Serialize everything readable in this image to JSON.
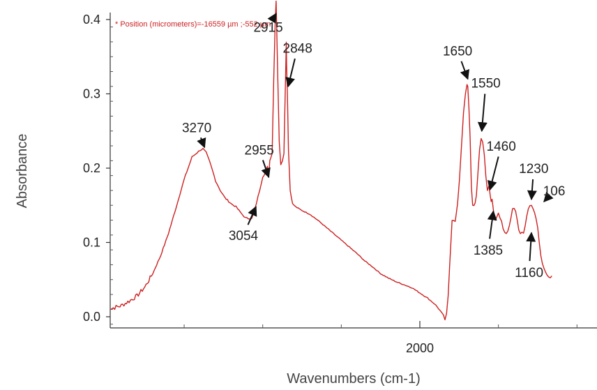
{
  "chart_data": {
    "type": "line",
    "title": "",
    "position_text": "* Position (micrometers)=-16559 µm ;-552 µm",
    "xlabel": "Wavenumbers (cm-1)",
    "ylabel": "Absorbance",
    "xlim": [
      4000,
      1000
    ],
    "ylim": [
      -0.02,
      0.43
    ],
    "x_reversed": true,
    "grid": false,
    "x_ticks": [
      {
        "value": 2000,
        "label": "2000"
      }
    ],
    "y_ticks": [
      {
        "value": 0.0,
        "label": "0.0"
      },
      {
        "value": 0.1,
        "label": "0.1"
      },
      {
        "value": 0.2,
        "label": "0.2"
      },
      {
        "value": 0.3,
        "label": "0.3"
      },
      {
        "value": 0.4,
        "label": "0.4"
      }
    ],
    "colors": {
      "line": "#cc1f1f",
      "position_text": "#cc1f1f",
      "arrows": "#111111"
    },
    "series": [
      {
        "points": [
          [
            3990,
            0.01
          ],
          [
            3950,
            0.012
          ],
          [
            3900,
            0.015
          ],
          [
            3850,
            0.021
          ],
          [
            3800,
            0.028
          ],
          [
            3750,
            0.04
          ],
          [
            3700,
            0.058
          ],
          [
            3650,
            0.082
          ],
          [
            3600,
            0.112
          ],
          [
            3550,
            0.148
          ],
          [
            3500,
            0.185
          ],
          [
            3450,
            0.215
          ],
          [
            3400,
            0.224
          ],
          [
            3380,
            0.226
          ],
          [
            3360,
            0.221
          ],
          [
            3340,
            0.21
          ],
          [
            3320,
            0.197
          ],
          [
            3300,
            0.183
          ],
          [
            3270,
            0.17
          ],
          [
            3240,
            0.16
          ],
          [
            3200,
            0.152
          ],
          [
            3170,
            0.148
          ],
          [
            3140,
            0.14
          ],
          [
            3110,
            0.133
          ],
          [
            3070,
            0.132
          ],
          [
            3054,
            0.141
          ],
          [
            3040,
            0.153
          ],
          [
            3020,
            0.17
          ],
          [
            3000,
            0.188
          ],
          [
            2985,
            0.193
          ],
          [
            2970,
            0.202
          ],
          [
            2962,
            0.188
          ],
          [
            2955,
            0.21
          ],
          [
            2940,
            0.22
          ],
          [
            2930,
            0.32
          ],
          [
            2920,
            0.4
          ],
          [
            2915,
            0.425
          ],
          [
            2912,
            0.4
          ],
          [
            2905,
            0.33
          ],
          [
            2895,
            0.235
          ],
          [
            2885,
            0.205
          ],
          [
            2875,
            0.21
          ],
          [
            2865,
            0.22
          ],
          [
            2855,
            0.32
          ],
          [
            2850,
            0.37
          ],
          [
            2848,
            0.34
          ],
          [
            2843,
            0.3
          ],
          [
            2836,
            0.225
          ],
          [
            2825,
            0.17
          ],
          [
            2810,
            0.152
          ],
          [
            2790,
            0.148
          ],
          [
            2750,
            0.143
          ],
          [
            2700,
            0.138
          ],
          [
            2650,
            0.13
          ],
          [
            2600,
            0.121
          ],
          [
            2550,
            0.112
          ],
          [
            2500,
            0.103
          ],
          [
            2450,
            0.094
          ],
          [
            2400,
            0.085
          ],
          [
            2350,
            0.075
          ],
          [
            2300,
            0.067
          ],
          [
            2250,
            0.058
          ],
          [
            2200,
            0.052
          ],
          [
            2150,
            0.047
          ],
          [
            2100,
            0.043
          ],
          [
            2050,
            0.039
          ],
          [
            2000,
            0.032
          ],
          [
            1950,
            0.025
          ],
          [
            1900,
            0.016
          ],
          [
            1870,
            0.008
          ],
          [
            1850,
            0.002
          ],
          [
            1840,
            -0.004
          ],
          [
            1830,
            0.004
          ],
          [
            1820,
            0.028
          ],
          [
            1810,
            0.07
          ],
          [
            1795,
            0.13
          ],
          [
            1785,
            0.13
          ],
          [
            1775,
            0.128
          ],
          [
            1760,
            0.152
          ],
          [
            1748,
            0.185
          ],
          [
            1735,
            0.23
          ],
          [
            1722,
            0.275
          ],
          [
            1710,
            0.3
          ],
          [
            1700,
            0.312
          ],
          [
            1695,
            0.31
          ],
          [
            1688,
            0.282
          ],
          [
            1680,
            0.24
          ],
          [
            1672,
            0.175
          ],
          [
            1664,
            0.15
          ],
          [
            1656,
            0.15
          ],
          [
            1648,
            0.153
          ],
          [
            1640,
            0.163
          ],
          [
            1630,
            0.195
          ],
          [
            1620,
            0.225
          ],
          [
            1610,
            0.24
          ],
          [
            1600,
            0.235
          ],
          [
            1590,
            0.218
          ],
          [
            1580,
            0.19
          ],
          [
            1570,
            0.17
          ],
          [
            1560,
            0.176
          ],
          [
            1552,
            0.163
          ],
          [
            1546,
            0.155
          ],
          [
            1540,
            0.158
          ],
          [
            1530,
            0.14
          ],
          [
            1520,
            0.13
          ],
          [
            1510,
            0.135
          ],
          [
            1500,
            0.14
          ],
          [
            1490,
            0.133
          ],
          [
            1480,
            0.128
          ],
          [
            1470,
            0.118
          ],
          [
            1460,
            0.113
          ],
          [
            1450,
            0.112
          ],
          [
            1440,
            0.115
          ],
          [
            1430,
            0.123
          ],
          [
            1420,
            0.134
          ],
          [
            1410,
            0.145
          ],
          [
            1400,
            0.146
          ],
          [
            1390,
            0.142
          ],
          [
            1380,
            0.13
          ],
          [
            1370,
            0.117
          ],
          [
            1360,
            0.112
          ],
          [
            1350,
            0.114
          ],
          [
            1340,
            0.112
          ],
          [
            1330,
            0.122
          ],
          [
            1320,
            0.135
          ],
          [
            1310,
            0.145
          ],
          [
            1300,
            0.15
          ],
          [
            1290,
            0.15
          ],
          [
            1280,
            0.146
          ],
          [
            1270,
            0.14
          ],
          [
            1260,
            0.132
          ],
          [
            1250,
            0.12
          ],
          [
            1240,
            0.1
          ],
          [
            1230,
            0.082
          ],
          [
            1220,
            0.072
          ],
          [
            1210,
            0.065
          ],
          [
            1200,
            0.06
          ],
          [
            1190,
            0.056
          ],
          [
            1180,
            0.054
          ],
          [
            1170,
            0.053
          ],
          [
            1160,
            0.055
          ]
        ]
      }
    ],
    "annotations": [
      {
        "text": "2915",
        "x": 2915,
        "y": 0.408,
        "text_x": 2965,
        "text_y": 0.39
      },
      {
        "text": "2848",
        "x": 2838,
        "y": 0.31,
        "text_x": 2778,
        "text_y": 0.362
      },
      {
        "text": "3270",
        "x": 3370,
        "y": 0.228,
        "text_x": 3420,
        "text_y": 0.255
      },
      {
        "text": "2955",
        "x": 2962,
        "y": 0.188,
        "text_x": 3022,
        "text_y": 0.225
      },
      {
        "text": "3054",
        "x": 3043,
        "y": 0.148,
        "text_x": 3123,
        "text_y": 0.11
      },
      {
        "text": "1650",
        "x": 1695,
        "y": 0.32,
        "text_x": 1760,
        "text_y": 0.358
      },
      {
        "text": "1550",
        "x": 1606,
        "y": 0.25,
        "text_x": 1580,
        "text_y": 0.315
      },
      {
        "text": "1460",
        "x": 1554,
        "y": 0.171,
        "text_x": 1482,
        "text_y": 0.23
      },
      {
        "text": "1230",
        "x": 1290,
        "y": 0.158,
        "text_x": 1275,
        "text_y": 0.2
      },
      {
        "text": "106",
        "x": 1210,
        "y": 0.155,
        "text_x": 1145,
        "text_y": 0.17
      },
      {
        "text": "1385",
        "x": 1532,
        "y": 0.142,
        "text_x": 1565,
        "text_y": 0.09
      },
      {
        "text": "1160",
        "x": 1290,
        "y": 0.113,
        "text_x": 1305,
        "text_y": 0.06
      }
    ]
  }
}
